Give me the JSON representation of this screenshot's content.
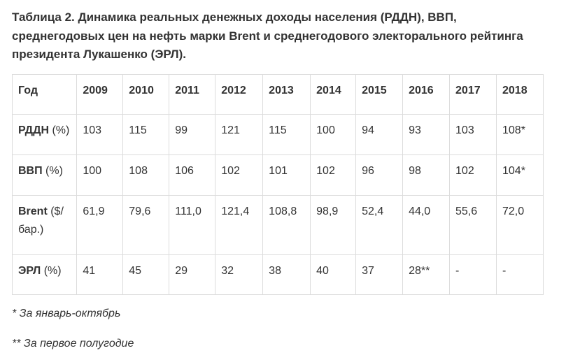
{
  "caption": "Таблица 2. Динамика реальных денежных доходы населения (РДДН), ВВП, среднегодовых цен на нефть марки Brent и среднегодового электорального рейтинга президента Лукашенко (ЭРЛ).",
  "table": {
    "header": [
      "Год",
      "2009",
      "2010",
      "2011",
      "2012",
      "2013",
      "2014",
      "2015",
      "2016",
      "2017",
      "2018"
    ],
    "rows": [
      {
        "label": "РДДН",
        "unit": " (%)",
        "values": [
          "103",
          "115",
          "99",
          "121",
          "115",
          "100",
          "94",
          "93",
          "103",
          "108*"
        ]
      },
      {
        "label": "ВВП",
        "unit": " (%)",
        "values": [
          "100",
          "108",
          "106",
          "102",
          "101",
          "102",
          "96",
          "98",
          "102",
          "104*"
        ]
      },
      {
        "label": "Brent",
        "unit": " ($/бар.)",
        "values": [
          "61,9",
          "79,6",
          "111,0",
          "121,4",
          "108,8",
          "98,9",
          "52,4",
          "44,0",
          "55,6",
          "72,0"
        ]
      },
      {
        "label": "ЭРЛ",
        "unit": " (%)",
        "values": [
          "41",
          "45",
          "29",
          "32",
          "38",
          "40",
          "37",
          "28**",
          "-",
          "-"
        ]
      }
    ]
  },
  "footnotes": {
    "first": "* За январь-октябрь",
    "second": "** За первое полугодие"
  }
}
